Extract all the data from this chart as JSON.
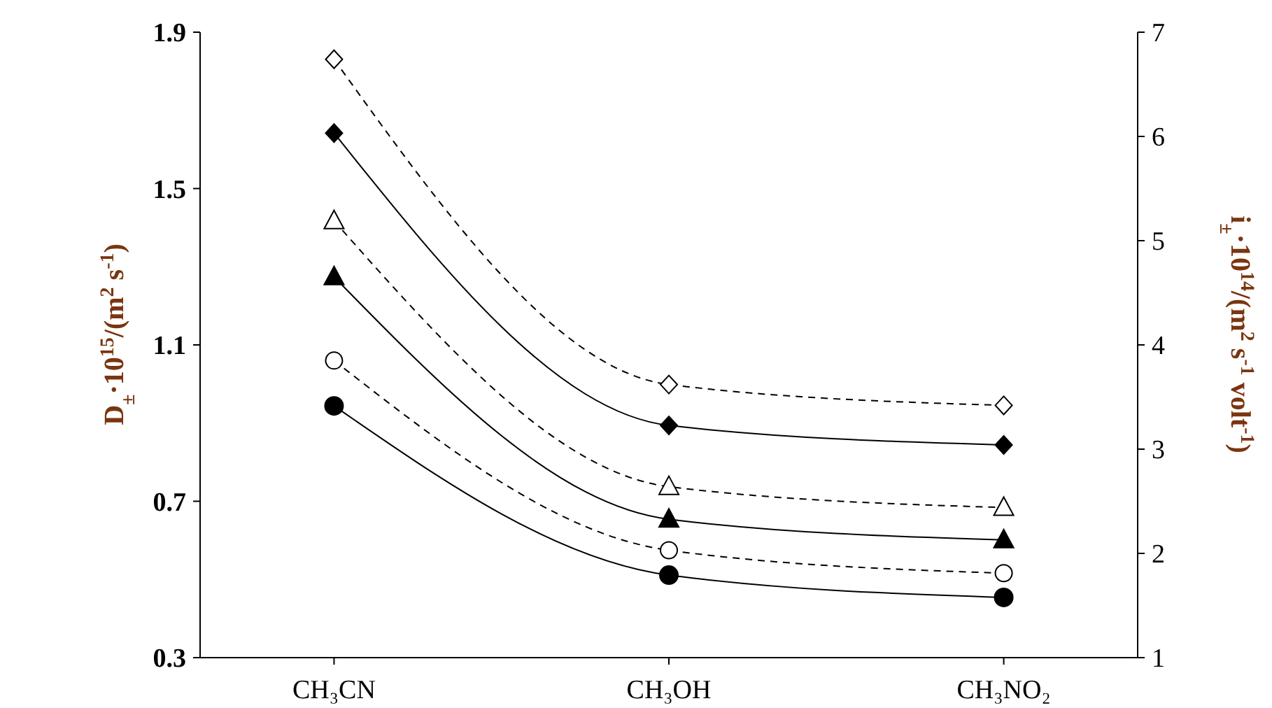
{
  "chart_data": {
    "type": "line",
    "categories": [
      "CH₃CN",
      "CH₃OH",
      "CH₃NO₂"
    ],
    "ylabel": "D$_{±}$·10$^{15}$/(m$^{2}$ s$^{-1}$)",
    "y2label": "i$_{±}$·10$^{14}$/(m$^{2}$ s$^{-1}$ volt$^{-1}$)",
    "ylim": [
      0.3,
      1.9
    ],
    "yticks": [
      0.3,
      0.7,
      1.1,
      1.5,
      1.9
    ],
    "y2lim": [
      1,
      7
    ],
    "y2ticks": [
      1,
      2,
      3,
      4,
      5,
      6,
      7
    ],
    "grid": false,
    "series": [
      {
        "color": "#000000",
        "marker": "circle",
        "line_style": "solid",
        "values": [
          0.944,
          0.511,
          0.454
        ]
      },
      {
        "color": "#000000",
        "marker": "triangle",
        "line_style": "solid",
        "values": [
          1.274,
          0.654,
          0.601
        ]
      },
      {
        "color": "#000000",
        "marker": "diamond",
        "line_style": "solid",
        "values": [
          1.642,
          0.894,
          0.844
        ]
      },
      {
        "color": "#000000",
        "marker": "circle",
        "line_style": "dashed",
        "axis": "y2",
        "values": [
          3.85,
          2.03,
          1.81
        ]
      },
      {
        "color": "#000000",
        "marker": "triangle",
        "line_style": "dashed",
        "axis": "y2",
        "values": [
          5.19,
          2.64,
          2.44
        ]
      },
      {
        "color": "#000000",
        "marker": "diamond",
        "line_style": "dashed",
        "axis": "y2",
        "values": [
          6.74,
          3.62,
          3.42
        ]
      }
    ]
  }
}
